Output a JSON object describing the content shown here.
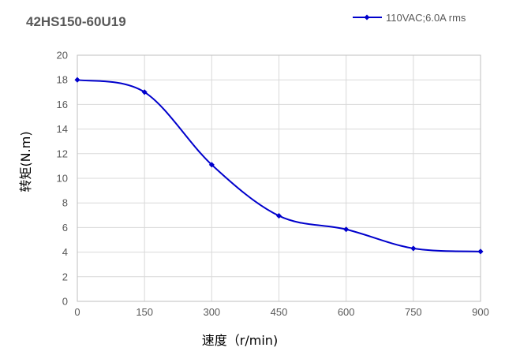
{
  "chart_data": {
    "type": "line",
    "title": "42HS150-60U19",
    "xlabel": "速度（r/min)",
    "ylabel": "转矩(N.m)",
    "xlim": [
      0,
      900
    ],
    "ylim": [
      0,
      20
    ],
    "xticks": [
      "0",
      "150",
      "300",
      "450",
      "600",
      "750",
      "900"
    ],
    "yticks": [
      "0",
      "2",
      "4",
      "6",
      "8",
      "10",
      "12",
      "14",
      "16",
      "18",
      "20"
    ],
    "grid": true,
    "legend_position": "top-right",
    "series": [
      {
        "name": "110VAC;6.0A rms",
        "color": "#0000cc",
        "marker": "diamond",
        "x": [
          0,
          150,
          300,
          450,
          600,
          750,
          900
        ],
        "y": [
          18.0,
          17.0,
          11.1,
          6.95,
          5.85,
          4.3,
          4.05
        ]
      }
    ]
  }
}
